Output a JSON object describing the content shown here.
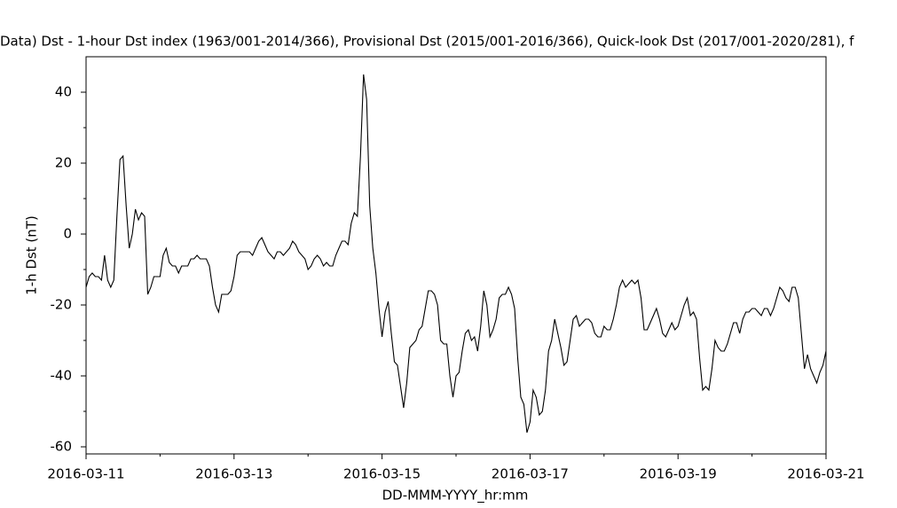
{
  "chart_data": {
    "type": "line",
    "title": "Data)  Dst - 1-hour Dst index (1963/001-2014/366), Provisional Dst (2015/001-2016/366), Quick-look Dst (2017/001-2020/281), f",
    "xlabel": "DD-MMM-YYYY_hr:mm",
    "ylabel": "1-h Dst (nT)",
    "color": "#000000",
    "xlim": [
      "2016-03-11",
      "2016-03-21"
    ],
    "xticks": [
      "2016-03-11",
      "2016-03-13",
      "2016-03-15",
      "2016-03-17",
      "2016-03-19",
      "2016-03-21"
    ],
    "xminorticks": [
      "2016-03-12",
      "2016-03-14",
      "2016-03-16",
      "2016-03-18",
      "2016-03-20"
    ],
    "ylim": [
      -62,
      50
    ],
    "yticks": [
      -60,
      -40,
      -20,
      0,
      20,
      40
    ],
    "yminorticks": [
      -50,
      -30,
      -10,
      10,
      30
    ],
    "x": [
      "2016-03-11 00:00",
      "2016-03-11 01:00",
      "2016-03-11 02:00",
      "2016-03-11 03:00",
      "2016-03-11 04:00",
      "2016-03-11 05:00",
      "2016-03-11 06:00",
      "2016-03-11 07:00",
      "2016-03-11 08:00",
      "2016-03-11 09:00",
      "2016-03-11 10:00",
      "2016-03-11 11:00",
      "2016-03-11 12:00",
      "2016-03-11 13:00",
      "2016-03-11 14:00",
      "2016-03-11 15:00",
      "2016-03-11 16:00",
      "2016-03-11 17:00",
      "2016-03-11 18:00",
      "2016-03-11 19:00",
      "2016-03-11 20:00",
      "2016-03-11 21:00",
      "2016-03-11 22:00",
      "2016-03-11 23:00",
      "2016-03-12 00:00",
      "2016-03-12 01:00",
      "2016-03-12 02:00",
      "2016-03-12 03:00",
      "2016-03-12 04:00",
      "2016-03-12 05:00",
      "2016-03-12 06:00",
      "2016-03-12 07:00",
      "2016-03-12 08:00",
      "2016-03-12 09:00",
      "2016-03-12 10:00",
      "2016-03-12 11:00",
      "2016-03-12 12:00",
      "2016-03-12 13:00",
      "2016-03-12 14:00",
      "2016-03-12 15:00",
      "2016-03-12 16:00",
      "2016-03-12 17:00",
      "2016-03-12 18:00",
      "2016-03-12 19:00",
      "2016-03-12 20:00",
      "2016-03-12 21:00",
      "2016-03-12 22:00",
      "2016-03-12 23:00",
      "2016-03-13 00:00",
      "2016-03-13 01:00",
      "2016-03-13 02:00",
      "2016-03-13 03:00",
      "2016-03-13 04:00",
      "2016-03-13 05:00",
      "2016-03-13 06:00",
      "2016-03-13 07:00",
      "2016-03-13 08:00",
      "2016-03-13 09:00",
      "2016-03-13 10:00",
      "2016-03-13 11:00",
      "2016-03-13 12:00",
      "2016-03-13 13:00",
      "2016-03-13 14:00",
      "2016-03-13 15:00",
      "2016-03-13 16:00",
      "2016-03-13 17:00",
      "2016-03-13 18:00",
      "2016-03-13 19:00",
      "2016-03-13 20:00",
      "2016-03-13 21:00",
      "2016-03-13 22:00",
      "2016-03-13 23:00",
      "2016-03-14 00:00",
      "2016-03-14 01:00",
      "2016-03-14 02:00",
      "2016-03-14 03:00",
      "2016-03-14 04:00",
      "2016-03-14 05:00",
      "2016-03-14 06:00",
      "2016-03-14 07:00",
      "2016-03-14 08:00",
      "2016-03-14 09:00",
      "2016-03-14 10:00",
      "2016-03-14 11:00",
      "2016-03-14 12:00",
      "2016-03-14 13:00",
      "2016-03-14 14:00",
      "2016-03-14 15:00",
      "2016-03-14 16:00",
      "2016-03-14 17:00",
      "2016-03-14 18:00",
      "2016-03-14 19:00",
      "2016-03-14 20:00",
      "2016-03-14 21:00",
      "2016-03-14 22:00",
      "2016-03-14 23:00",
      "2016-03-15 00:00",
      "2016-03-15 01:00",
      "2016-03-15 02:00",
      "2016-03-15 03:00",
      "2016-03-15 04:00",
      "2016-03-15 05:00",
      "2016-03-15 06:00",
      "2016-03-15 07:00",
      "2016-03-15 08:00",
      "2016-03-15 09:00",
      "2016-03-15 10:00",
      "2016-03-15 11:00",
      "2016-03-15 12:00",
      "2016-03-15 13:00",
      "2016-03-15 14:00",
      "2016-03-15 15:00",
      "2016-03-15 16:00",
      "2016-03-15 17:00",
      "2016-03-15 18:00",
      "2016-03-15 19:00",
      "2016-03-15 20:00",
      "2016-03-15 21:00",
      "2016-03-15 22:00",
      "2016-03-15 23:00",
      "2016-03-16 00:00",
      "2016-03-16 01:00",
      "2016-03-16 02:00",
      "2016-03-16 03:00",
      "2016-03-16 04:00",
      "2016-03-16 05:00",
      "2016-03-16 06:00",
      "2016-03-16 07:00",
      "2016-03-16 08:00",
      "2016-03-16 09:00",
      "2016-03-16 10:00",
      "2016-03-16 11:00",
      "2016-03-16 12:00",
      "2016-03-16 13:00",
      "2016-03-16 14:00",
      "2016-03-16 15:00",
      "2016-03-16 16:00",
      "2016-03-16 17:00",
      "2016-03-16 18:00",
      "2016-03-16 19:00",
      "2016-03-16 20:00",
      "2016-03-16 21:00",
      "2016-03-16 22:00",
      "2016-03-16 23:00",
      "2016-03-17 00:00",
      "2016-03-17 01:00",
      "2016-03-17 02:00",
      "2016-03-17 03:00",
      "2016-03-17 04:00",
      "2016-03-17 05:00",
      "2016-03-17 06:00",
      "2016-03-17 07:00",
      "2016-03-17 08:00",
      "2016-03-17 09:00",
      "2016-03-17 10:00",
      "2016-03-17 11:00",
      "2016-03-17 12:00",
      "2016-03-17 13:00",
      "2016-03-17 14:00",
      "2016-03-17 15:00",
      "2016-03-17 16:00",
      "2016-03-17 17:00",
      "2016-03-17 18:00",
      "2016-03-17 19:00",
      "2016-03-17 20:00",
      "2016-03-17 21:00",
      "2016-03-17 22:00",
      "2016-03-17 23:00",
      "2016-03-18 00:00",
      "2016-03-18 01:00",
      "2016-03-18 02:00",
      "2016-03-18 03:00",
      "2016-03-18 04:00",
      "2016-03-18 05:00",
      "2016-03-18 06:00",
      "2016-03-18 07:00",
      "2016-03-18 08:00",
      "2016-03-18 09:00",
      "2016-03-18 10:00",
      "2016-03-18 11:00",
      "2016-03-18 12:00",
      "2016-03-18 13:00",
      "2016-03-18 14:00",
      "2016-03-18 15:00",
      "2016-03-18 16:00",
      "2016-03-18 17:00",
      "2016-03-18 18:00",
      "2016-03-18 19:00",
      "2016-03-18 20:00",
      "2016-03-18 21:00",
      "2016-03-18 22:00",
      "2016-03-18 23:00",
      "2016-03-19 00:00",
      "2016-03-19 01:00",
      "2016-03-19 02:00",
      "2016-03-19 03:00",
      "2016-03-19 04:00",
      "2016-03-19 05:00",
      "2016-03-19 06:00",
      "2016-03-19 07:00",
      "2016-03-19 08:00",
      "2016-03-19 09:00",
      "2016-03-19 10:00",
      "2016-03-19 11:00",
      "2016-03-19 12:00",
      "2016-03-19 13:00",
      "2016-03-19 14:00",
      "2016-03-19 15:00",
      "2016-03-19 16:00",
      "2016-03-19 17:00",
      "2016-03-19 18:00",
      "2016-03-19 19:00",
      "2016-03-19 20:00",
      "2016-03-19 21:00",
      "2016-03-19 22:00",
      "2016-03-19 23:00",
      "2016-03-20 00:00",
      "2016-03-20 01:00",
      "2016-03-20 02:00",
      "2016-03-20 03:00",
      "2016-03-20 04:00",
      "2016-03-20 05:00",
      "2016-03-20 06:00",
      "2016-03-20 07:00",
      "2016-03-20 08:00",
      "2016-03-20 09:00",
      "2016-03-20 10:00",
      "2016-03-20 11:00",
      "2016-03-20 12:00",
      "2016-03-20 13:00",
      "2016-03-20 14:00",
      "2016-03-20 15:00",
      "2016-03-20 16:00",
      "2016-03-20 17:00",
      "2016-03-20 18:00",
      "2016-03-20 19:00",
      "2016-03-20 20:00",
      "2016-03-20 21:00",
      "2016-03-20 22:00",
      "2016-03-20 23:00",
      "2016-03-21 00:00"
    ],
    "values": [
      -15,
      -12,
      -11,
      -12,
      -12,
      -13,
      -6,
      -13,
      -15,
      -13,
      5,
      21,
      22,
      8,
      -4,
      0,
      7,
      4,
      6,
      5,
      -17,
      -15,
      -12,
      -12,
      -12,
      -6,
      -4,
      -8,
      -9,
      -9,
      -11,
      -9,
      -9,
      -9,
      -7,
      -7,
      -6,
      -7,
      -7,
      -7,
      -9,
      -15,
      -20,
      -22,
      -17,
      -17,
      -17,
      -16,
      -12,
      -6,
      -5,
      -5,
      -5,
      -5,
      -6,
      -4,
      -2,
      -1,
      -3,
      -5,
      -6,
      -7,
      -5,
      -5,
      -6,
      -5,
      -4,
      -2,
      -3,
      -5,
      -6,
      -7,
      -10,
      -9,
      -7,
      -6,
      -7,
      -9,
      -8,
      -9,
      -9,
      -6,
      -4,
      -2,
      -2,
      -3,
      3,
      6,
      5,
      22,
      45,
      38,
      8,
      -4,
      -11,
      -21,
      -29,
      -22,
      -19,
      -28,
      -36,
      -37,
      -43,
      -49,
      -42,
      -32,
      -31,
      -30,
      -27,
      -26,
      -21,
      -16,
      -16,
      -17,
      -20,
      -30,
      -31,
      -31,
      -40,
      -46,
      -40,
      -39,
      -33,
      -28,
      -27,
      -30,
      -29,
      -33,
      -26,
      -16,
      -20,
      -29,
      -27,
      -24,
      -18,
      -17,
      -17,
      -15,
      -17,
      -21,
      -35,
      -46,
      -48,
      -56,
      -53,
      -44,
      -46,
      -51,
      -50,
      -44,
      -33,
      -30,
      -24,
      -28,
      -32,
      -37,
      -36,
      -30,
      -24,
      -23,
      -26,
      -25,
      -24,
      -24,
      -25,
      -28,
      -29,
      -29,
      -26,
      -27,
      -27,
      -24,
      -20,
      -15,
      -13,
      -15,
      -14,
      -13,
      -14,
      -13,
      -18,
      -27,
      -27,
      -25,
      -23,
      -21,
      -24,
      -28,
      -29,
      -27,
      -25,
      -27,
      -26,
      -23,
      -20,
      -18,
      -23,
      -22,
      -24,
      -35,
      -44,
      -43,
      -44,
      -38,
      -30,
      -32,
      -33,
      -33,
      -31,
      -28,
      -25,
      -25,
      -28,
      -24,
      -22,
      -22,
      -21,
      -21,
      -22,
      -23,
      -21,
      -21,
      -23,
      -21,
      -18,
      -15,
      -16,
      -18,
      -19,
      -15,
      -15,
      -18,
      -28,
      -38,
      -34,
      -38,
      -40,
      -42,
      -39,
      -37,
      -33
    ]
  }
}
